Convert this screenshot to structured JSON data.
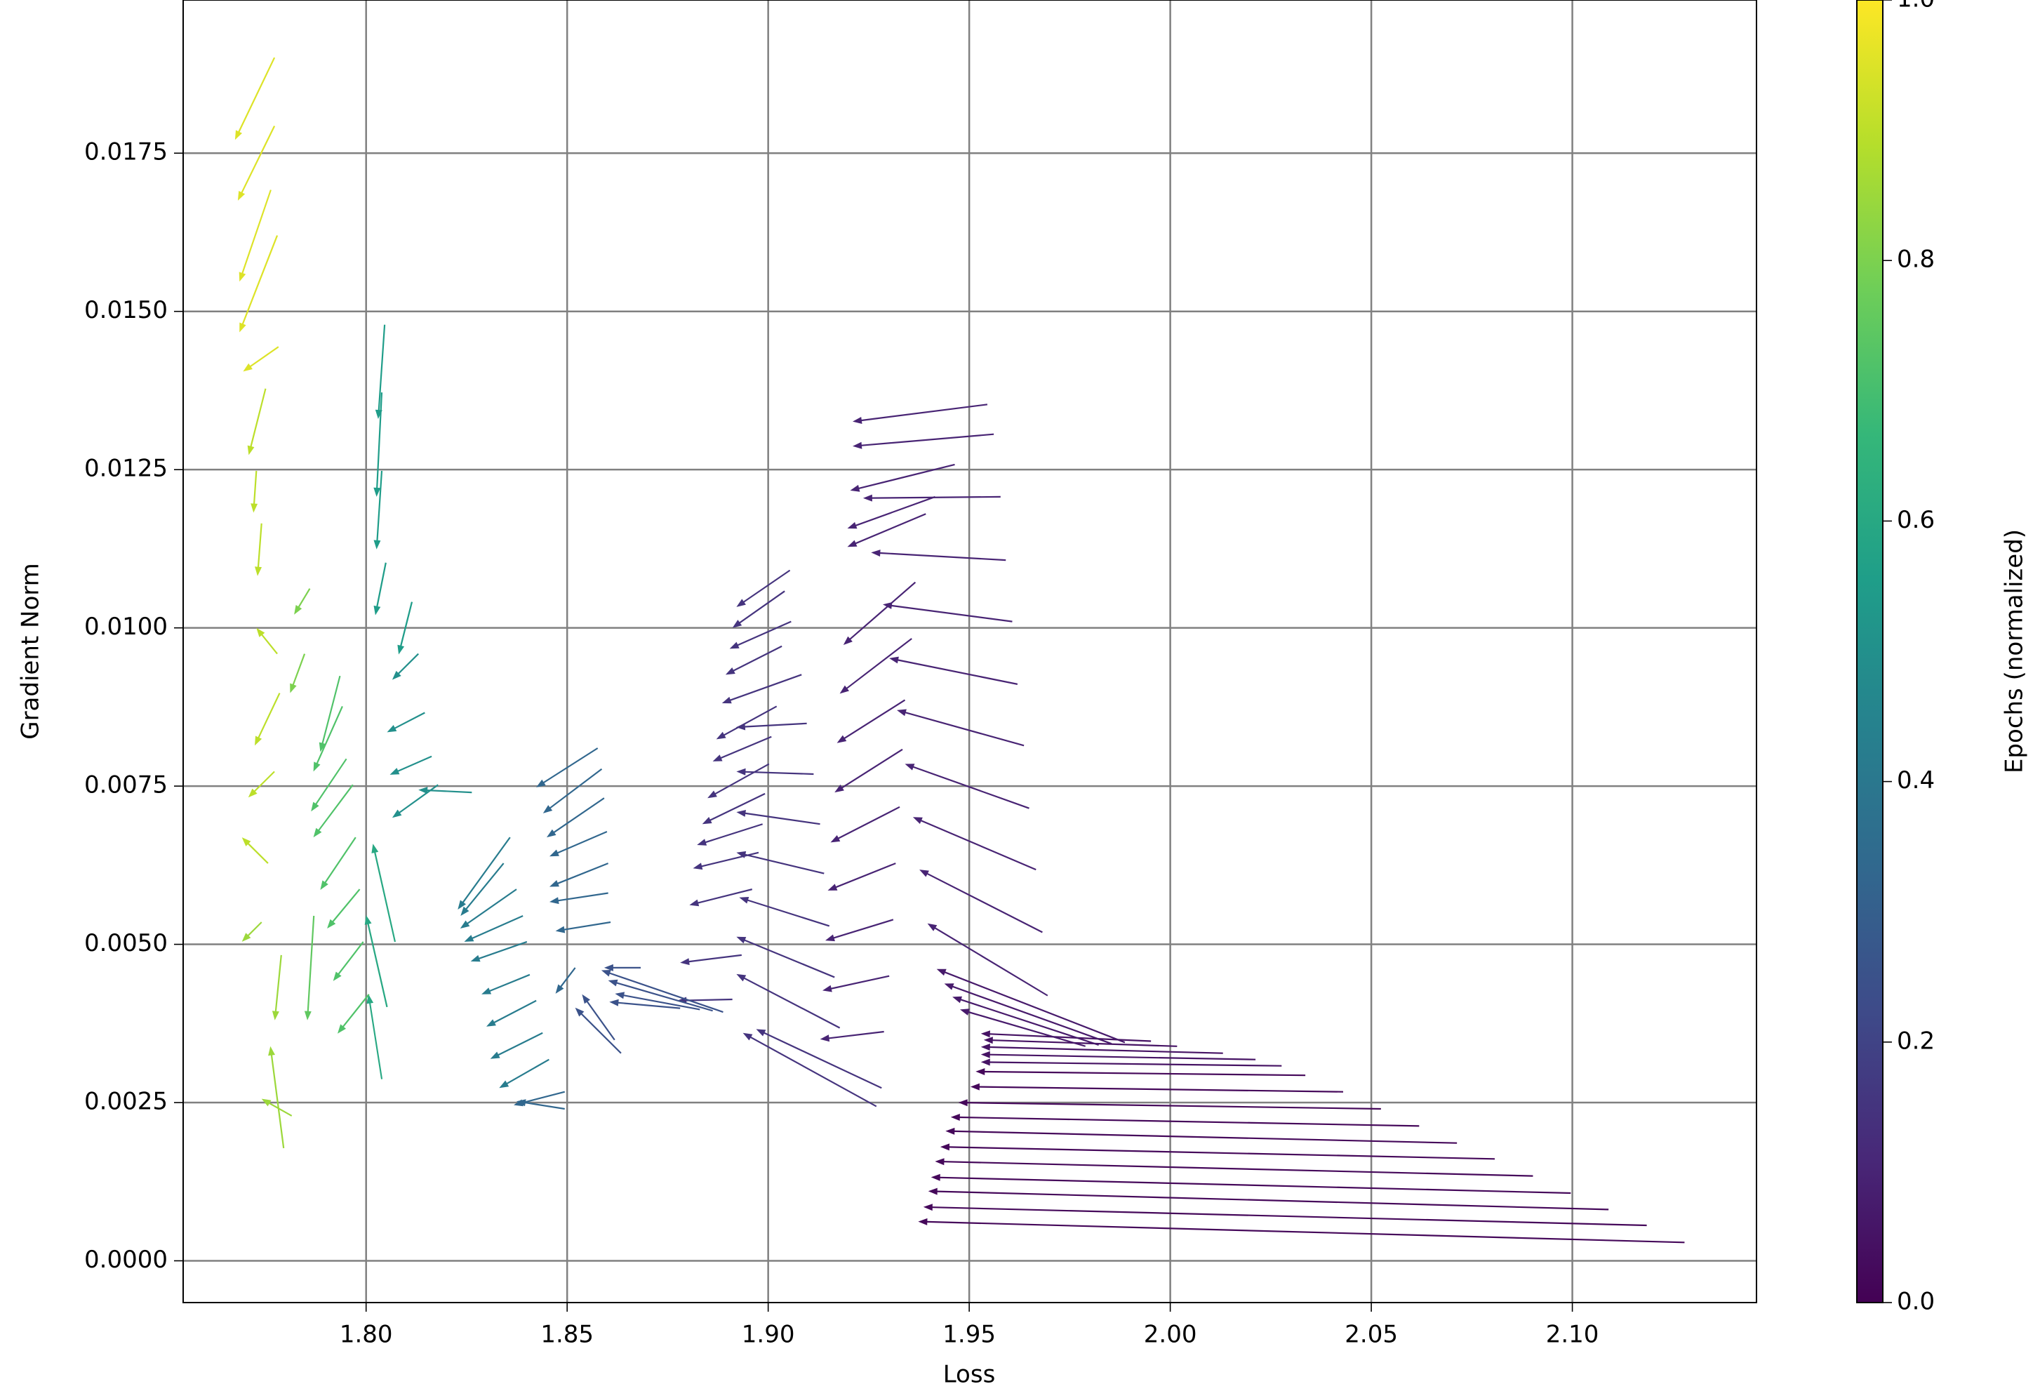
{
  "chart_data": {
    "type": "quiver",
    "xlabel": "Loss",
    "ylabel": "Gradient Norm",
    "xlim": [
      1.7545,
      2.1458
    ],
    "ylim": [
      -0.00066,
      0.01992
    ],
    "xticks": [
      {
        "value": 1.8,
        "label": "1.80"
      },
      {
        "value": 1.85,
        "label": "1.85"
      },
      {
        "value": 1.9,
        "label": "1.90"
      },
      {
        "value": 1.95,
        "label": "1.95"
      },
      {
        "value": 2.0,
        "label": "2.00"
      },
      {
        "value": 2.05,
        "label": "2.05"
      },
      {
        "value": 2.1,
        "label": "2.10"
      }
    ],
    "yticks": [
      {
        "value": 0,
        "label": "0.0000"
      },
      {
        "value": 0.0025,
        "label": "0.0025"
      },
      {
        "value": 0.005,
        "label": "0.0050"
      },
      {
        "value": 0.0075,
        "label": "0.0075"
      },
      {
        "value": 0.01,
        "label": "0.0100"
      },
      {
        "value": 0.0125,
        "label": "0.0125"
      },
      {
        "value": 0.015,
        "label": "0.0150"
      },
      {
        "value": 0.0175,
        "label": "0.0175"
      }
    ],
    "grid": true,
    "colormap": [
      "#440154",
      "#482878",
      "#3e4a89",
      "#31688e",
      "#26828e",
      "#1f9e89",
      "#35b779",
      "#6ece58",
      "#b5de2b",
      "#fde725"
    ],
    "colorbar": {
      "label": "Epochs (normalized)",
      "lim": [
        0,
        1
      ],
      "ticks": [
        {
          "value": 0,
          "label": "0.0"
        },
        {
          "value": 0.2,
          "label": "0.2"
        },
        {
          "value": 0.4,
          "label": "0.4"
        },
        {
          "value": 0.6,
          "label": "0.6"
        },
        {
          "value": 0.8,
          "label": "0.8"
        },
        {
          "value": 1,
          "label": "1.0"
        }
      ]
    },
    "x": [
      2.1279,
      2.1185,
      2.109,
      2.0996,
      2.0902,
      2.0807,
      2.0713,
      2.0619,
      2.0524,
      2.043,
      2.0336,
      2.0277,
      2.0212,
      2.0131,
      2.0017,
      1.9952,
      1.9887,
      1.9854,
      1.9822,
      1.9789,
      1.9545,
      1.9561,
      1.9464,
      1.9578,
      1.9415,
      1.9392,
      1.9591,
      1.9366,
      1.9607,
      1.9357,
      1.962,
      1.934,
      1.9636,
      1.9334,
      1.9649,
      1.9327,
      1.9666,
      1.9317,
      1.9682,
      1.9311,
      1.9695,
      1.9301,
      1.9288,
      1.9054,
      1.9041,
      1.9057,
      1.9034,
      1.9083,
      1.9021,
      1.9096,
      1.9008,
      1.9113,
      1.9002,
      1.9129,
      1.8992,
      1.9139,
      1.8986,
      1.9152,
      1.8976,
      1.9165,
      1.896,
      1.9178,
      1.8934,
      1.9269,
      1.9282,
      1.8911,
      1.8888,
      1.8862,
      1.883,
      1.8781,
      1.8683,
      1.8634,
      1.8618,
      1.8576,
      1.8586,
      1.8592,
      1.8599,
      1.8602,
      1.8602,
      1.8608,
      1.8494,
      1.8494,
      1.852,
      1.8358,
      1.8342,
      1.8374,
      1.839,
      1.84,
      1.8407,
      1.8423,
      1.8439,
      1.8455,
      1.8046,
      1.8039,
      1.8039,
      1.8049,
      1.8114,
      1.813,
      1.8146,
      1.8163,
      1.8263,
      1.8179,
      1.8072,
      1.8039,
      1.8052,
      1.7935,
      1.7941,
      1.7951,
      1.7967,
      1.7974,
      1.7984,
      1.7993,
      1.8007,
      1.786,
      1.7847,
      1.787,
      1.7772,
      1.7772,
      1.7763,
      1.7779,
      1.7782,
      1.775,
      1.7727,
      1.774,
      1.7779,
      1.7785,
      1.7772,
      1.7756,
      1.7789,
      1.7795,
      1.7815,
      1.774
    ],
    "y": [
      0.00029,
      0.00056,
      0.00081,
      0.00107,
      0.00134,
      0.00161,
      0.00186,
      0.00213,
      0.0024,
      0.00267,
      0.00293,
      0.00308,
      0.00318,
      0.00328,
      0.00339,
      0.00347,
      0.00345,
      0.00343,
      0.00341,
      0.00339,
      0.01353,
      0.01306,
      0.01258,
      0.01207,
      0.01207,
      0.0118,
      0.01107,
      0.01072,
      0.0101,
      0.00983,
      0.00911,
      0.00886,
      0.00814,
      0.00808,
      0.00715,
      0.00717,
      0.00618,
      0.00628,
      0.00519,
      0.00539,
      0.00419,
      0.0045,
      0.00362,
      0.01091,
      0.01058,
      0.0101,
      0.00971,
      0.00926,
      0.00876,
      0.00849,
      0.00828,
      0.00769,
      0.00785,
      0.0069,
      0.00738,
      0.00612,
      0.0069,
      0.00529,
      0.00645,
      0.00448,
      0.00587,
      0.00368,
      0.00483,
      0.00244,
      0.00273,
      0.00413,
      0.00393,
      0.00395,
      0.00397,
      0.00399,
      0.00463,
      0.00328,
      0.00349,
      0.0081,
      0.00777,
      0.00731,
      0.00678,
      0.00628,
      0.00581,
      0.00535,
      0.00267,
      0.0024,
      0.00463,
      0.00669,
      0.00628,
      0.00587,
      0.00545,
      0.00504,
      0.00452,
      0.00411,
      0.0036,
      0.00318,
      0.01479,
      0.01372,
      0.01248,
      0.01103,
      0.01041,
      0.00959,
      0.00866,
      0.00797,
      0.0074,
      0.00752,
      0.00504,
      0.00287,
      0.00401,
      0.00924,
      0.00876,
      0.00793,
      0.00752,
      0.00669,
      0.00587,
      0.00504,
      0.00421,
      0.01062,
      0.00959,
      0.00545,
      0.01901,
      0.01793,
      0.01692,
      0.0162,
      0.01444,
      0.01378,
      0.01248,
      0.01165,
      0.00959,
      0.00897,
      0.00773,
      0.00628,
      0.00483,
      0.00178,
      0.00229,
      0.00535
    ],
    "u": [
      -0.1906,
      -0.1799,
      -0.1692,
      -0.1591,
      -0.1487,
      -0.1379,
      -0.1272,
      -0.1165,
      -0.1051,
      -0.0927,
      -0.082,
      -0.0748,
      -0.0683,
      -0.0602,
      -0.0481,
      -0.0423,
      -0.0468,
      -0.0416,
      -0.0364,
      -0.0312,
      -0.0335,
      -0.0351,
      -0.026,
      -0.0342,
      -0.0218,
      -0.0195,
      -0.0335,
      -0.0179,
      -0.0322,
      -0.0179,
      -0.0319,
      -0.0169,
      -0.0316,
      -0.0169,
      -0.0309,
      -0.0172,
      -0.0306,
      -0.0169,
      -0.0306,
      -0.0169,
      -0.0299,
      -0.0166,
      -0.0159,
      -0.0133,
      -0.013,
      -0.0153,
      -0.014,
      -0.0198,
      -0.015,
      -0.0176,
      -0.0146,
      -0.0192,
      -0.0153,
      -0.0208,
      -0.0156,
      -0.0218,
      -0.0163,
      -0.0224,
      -0.0163,
      -0.0244,
      -0.0156,
      -0.0257,
      -0.0153,
      -0.0332,
      -0.0312,
      -0.0137,
      -0.0303,
      -0.026,
      -0.0211,
      -0.0176,
      -0.0091,
      -0.0114,
      -0.0081,
      -0.0153,
      -0.0146,
      -0.0143,
      -0.0143,
      -0.0146,
      -0.0146,
      -0.0137,
      -0.0127,
      -0.012,
      -0.0049,
      -0.013,
      -0.0107,
      -0.014,
      -0.0146,
      -0.014,
      -0.012,
      -0.0124,
      -0.013,
      -0.0124,
      -0.0016,
      -0.0013,
      -0.0013,
      -0.0026,
      -0.0033,
      -0.0065,
      -0.0094,
      -0.0104,
      -0.0133,
      -0.0114,
      -0.0055,
      -0.0033,
      -0.0052,
      -0.0049,
      -0.0072,
      -0.0088,
      -0.0098,
      -0.0088,
      -0.0081,
      -0.0075,
      -0.0078,
      -0.0039,
      -0.0036,
      -0.0016,
      -0.0098,
      -0.0091,
      -0.0078,
      -0.0094,
      -0.0088,
      -0.0042,
      -0.0007,
      -0.001,
      -0.0052,
      -0.0062,
      -0.0065,
      -0.0065,
      -0.0016,
      -0.0033,
      -0.0075,
      -0.0049
    ],
    "v": [
      0.00033,
      0.00029,
      0.00029,
      0.00025,
      0.00023,
      0.00019,
      0.00019,
      0.00014,
      0.0001,
      8e-05,
      6e-05,
      6e-05,
      8e-05,
      0.0001,
      0.0001,
      0.00012,
      0.00116,
      0.00095,
      0.00076,
      0.00058,
      -0.00027,
      -0.00019,
      -0.00041,
      -2e-05,
      -0.0005,
      -0.00052,
      0.00012,
      -0.00099,
      0.00027,
      -0.00087,
      0.00041,
      -0.00068,
      0.00056,
      -0.00068,
      0.0007,
      -0.00056,
      0.00083,
      -0.00043,
      0.00099,
      -0.00033,
      0.00114,
      -0.00023,
      -0.00012,
      -0.00058,
      -0.00058,
      -0.00043,
      -0.00045,
      -0.00045,
      -0.00052,
      -6e-05,
      -0.00039,
      4e-05,
      -0.00054,
      0.00019,
      -0.00048,
      0.00033,
      -0.00033,
      0.00045,
      -0.00025,
      0.00064,
      -0.00025,
      0.00085,
      -0.00012,
      0.00116,
      0.00093,
      -2e-05,
      0.00066,
      0.00048,
      0.00025,
      0.0001,
      0,
      0.00072,
      0.00072,
      -0.00062,
      -0.0007,
      -0.00062,
      -0.00039,
      -0.00037,
      -0.00014,
      -0.00014,
      -0.00021,
      0.00012,
      -0.00041,
      -0.00114,
      -0.00083,
      -0.00062,
      -0.00041,
      -0.00031,
      -0.00031,
      -0.00041,
      -0.00041,
      -0.00045,
      -0.00149,
      -0.00165,
      -0.00124,
      -0.00083,
      -0.00083,
      -0.00041,
      -0.00031,
      -0.00029,
      4e-05,
      -0.00052,
      0.00155,
      0.00134,
      0.00145,
      -0.0012,
      -0.00103,
      -0.00083,
      -0.00083,
      -0.00083,
      -0.00062,
      -0.00062,
      -0.00062,
      -0.00041,
      -0.00062,
      -0.00165,
      -0.0013,
      -0.00118,
      -0.00145,
      -0.00153,
      -0.00039,
      -0.00105,
      -0.00066,
      -0.00083,
      0.00041,
      -0.00083,
      -0.00041,
      0.00041,
      -0.00103,
      0.00161,
      0.00027,
      -0.00031
    ],
    "c": [
      0.02,
      0.02,
      0.02,
      0.02,
      0.02,
      0.02,
      0.02,
      0.02,
      0.02,
      0.02,
      0.02,
      0.05,
      0.05,
      0.05,
      0.05,
      0.05,
      0.07,
      0.07,
      0.07,
      0.07,
      0.1,
      0.1,
      0.1,
      0.1,
      0.1,
      0.1,
      0.1,
      0.1,
      0.1,
      0.1,
      0.1,
      0.1,
      0.1,
      0.1,
      0.1,
      0.1,
      0.1,
      0.1,
      0.1,
      0.1,
      0.1,
      0.1,
      0.1,
      0.15,
      0.15,
      0.15,
      0.15,
      0.15,
      0.15,
      0.15,
      0.15,
      0.15,
      0.15,
      0.15,
      0.15,
      0.15,
      0.15,
      0.15,
      0.15,
      0.15,
      0.15,
      0.15,
      0.15,
      0.15,
      0.15,
      0.15,
      0.25,
      0.25,
      0.25,
      0.25,
      0.25,
      0.25,
      0.25,
      0.33,
      0.33,
      0.33,
      0.33,
      0.33,
      0.33,
      0.33,
      0.33,
      0.33,
      0.33,
      0.42,
      0.42,
      0.42,
      0.42,
      0.42,
      0.42,
      0.42,
      0.42,
      0.42,
      0.55,
      0.55,
      0.55,
      0.55,
      0.55,
      0.5,
      0.5,
      0.5,
      0.5,
      0.5,
      0.6,
      0.6,
      0.6,
      0.72,
      0.72,
      0.72,
      0.72,
      0.72,
      0.72,
      0.72,
      0.72,
      0.8,
      0.8,
      0.75,
      0.95,
      0.95,
      0.95,
      0.95,
      0.95,
      0.9,
      0.9,
      0.9,
      0.9,
      0.9,
      0.9,
      0.9,
      0.85,
      0.85,
      0.85,
      0.85
    ]
  }
}
